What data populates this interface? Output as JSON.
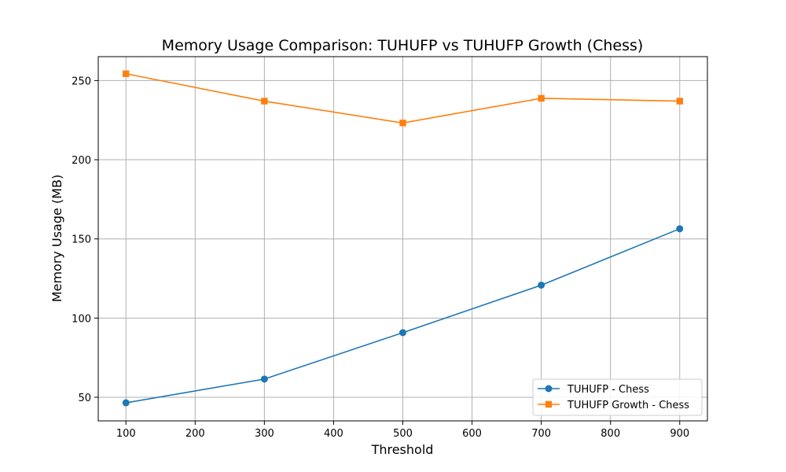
{
  "chart_data": {
    "type": "line",
    "title": "Memory Usage Comparison: TUHUFP vs TUHUFP Growth (Chess)",
    "xlabel": "Threshold",
    "ylabel": "Memory Usage (MB)",
    "x": [
      100,
      300,
      500,
      700,
      900
    ],
    "series": [
      {
        "name": "TUHUFP - Chess",
        "values": [
          46.5,
          61.5,
          90.8,
          120.8,
          156.4
        ],
        "color": "#1f77b4",
        "marker": "circle"
      },
      {
        "name": "TUHUFP Growth - Chess",
        "values": [
          254.3,
          237.0,
          223.2,
          238.8,
          237.0
        ],
        "color": "#ff7f0e",
        "marker": "square"
      }
    ],
    "xlim": [
      60,
      940
    ],
    "ylim": [
      35.1,
      265.1
    ],
    "xticks": [
      100,
      200,
      300,
      400,
      500,
      600,
      700,
      800,
      900
    ],
    "yticks": [
      50,
      100,
      150,
      200,
      250
    ],
    "grid": true,
    "legend_position": "lower-right"
  }
}
